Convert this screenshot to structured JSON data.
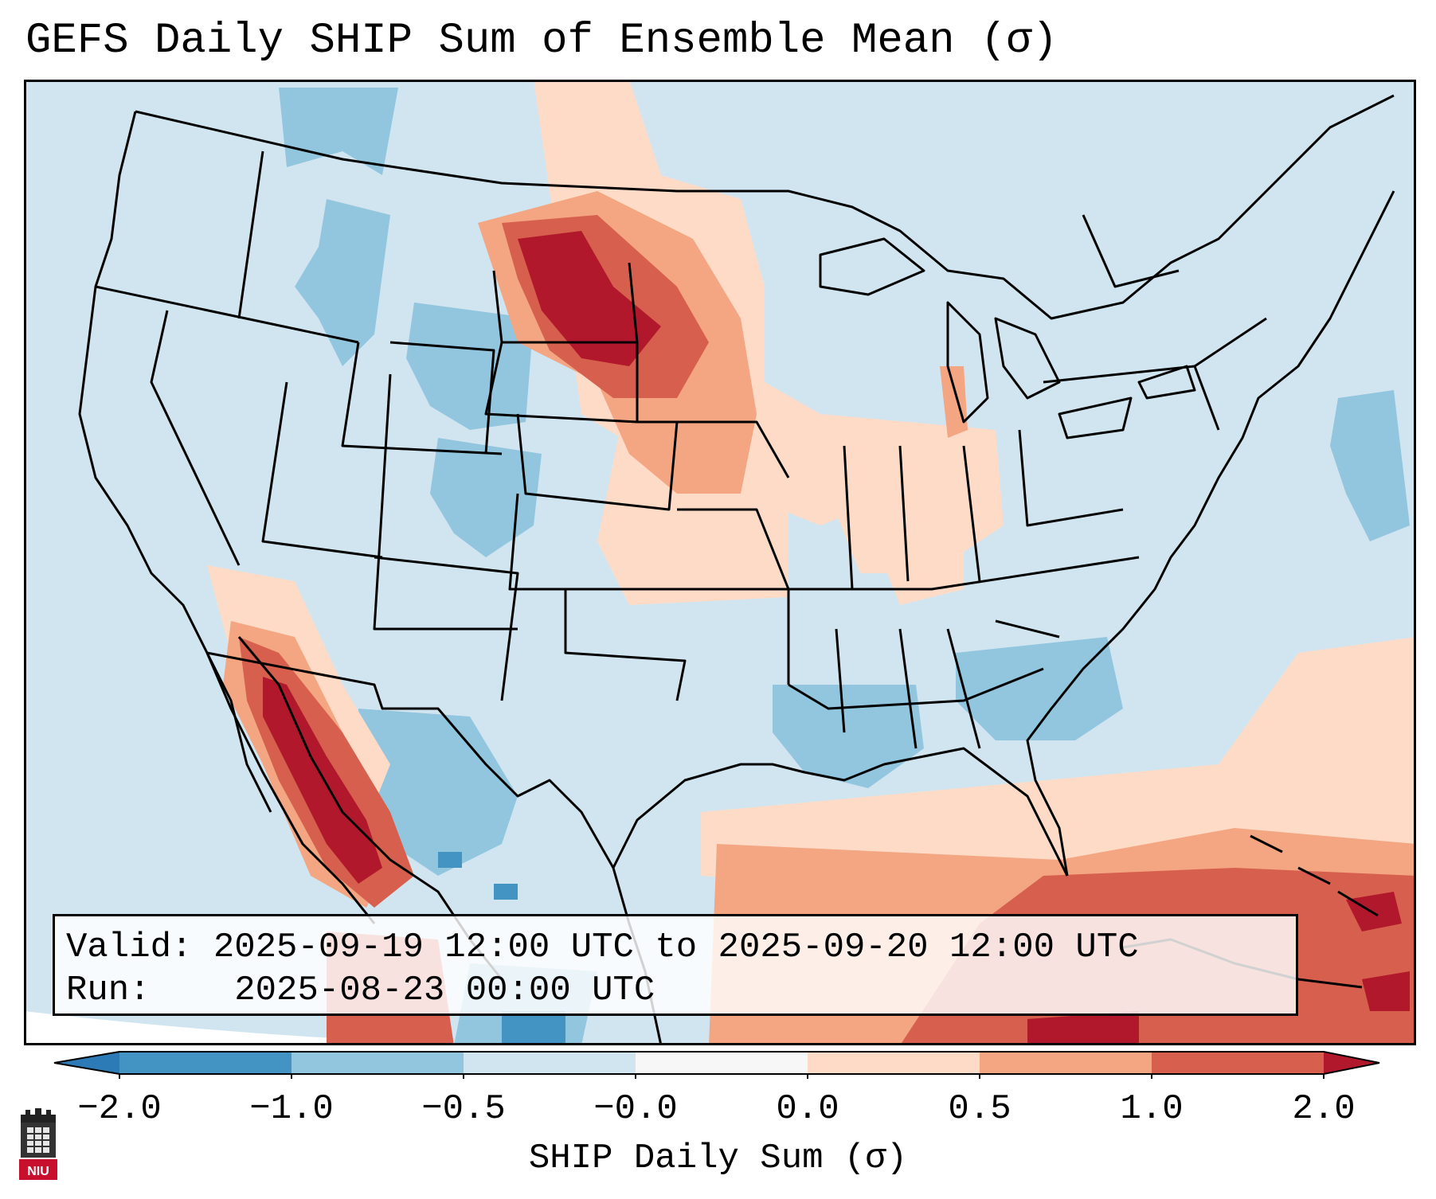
{
  "title": "GEFS Daily SHIP Sum of Ensemble Mean (σ)",
  "info": {
    "valid_label": "Valid:",
    "valid_value": "2025-09-19 12:00 UTC to 2025-09-20 12:00 UTC",
    "run_label": "Run:",
    "run_value": "2025-08-23 00:00 UTC"
  },
  "colorbar": {
    "label": "SHIP Daily Sum (σ)",
    "ticks": [
      "−2.0",
      "−1.0",
      "−0.5",
      "−0.0",
      "0.0",
      "0.5",
      "1.0",
      "2.0"
    ],
    "bins": [
      {
        "range": "< -2.0",
        "color": "#2c7bb6"
      },
      {
        "range": "-2.0 to -1.0",
        "color": "#4393c3"
      },
      {
        "range": "-1.0 to -0.5",
        "color": "#92c5de"
      },
      {
        "range": "-0.5 to -0.0",
        "color": "#d1e5f0"
      },
      {
        "range": "-0.0 to 0.0",
        "color": "#f7f7f7"
      },
      {
        "range": "0.0 to 0.5",
        "color": "#fddbc7"
      },
      {
        "range": "0.5 to 1.0",
        "color": "#f4a582"
      },
      {
        "range": "1.0 to 2.0",
        "color": "#d6604d"
      },
      {
        "range": "> 2.0",
        "color": "#b2182b"
      }
    ]
  },
  "map": {
    "region": "Continental United States",
    "background_color": "#d1e5f0",
    "anomaly_areas": [
      {
        "region": "northern Great Plains (Dakotas / Montana)",
        "category": "1.0 to 2.0"
      },
      {
        "region": "Great Basin / Colorado Plateau",
        "category": "-1.0 to -0.5"
      },
      {
        "region": "Gulf of California / Sierra Madre Occidental",
        "category": "1.0 to 2.0"
      },
      {
        "region": "Gulf of Mexico and Caribbean",
        "category": "0.5 to 1.0"
      },
      {
        "region": "Lower Mississippi Valley",
        "category": "-1.0 to -0.5"
      }
    ]
  },
  "logo": {
    "text": "NIU",
    "color": "#c8102e"
  }
}
